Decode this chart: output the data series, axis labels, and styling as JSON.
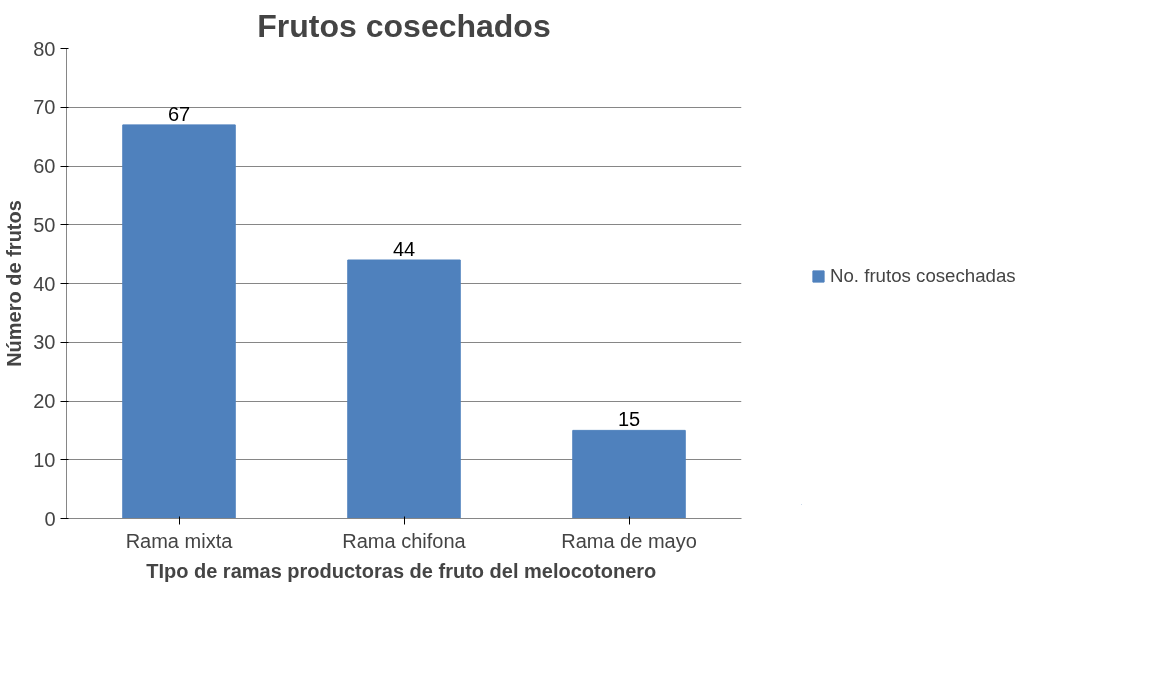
{
  "chart_data": {
    "type": "bar",
    "title": "Frutos cosechados",
    "xlabel": "TIpo de ramas productoras de  fruto del melocotonero",
    "ylabel": "Número de frutos",
    "categories": [
      "Rama mixta",
      "Rama chifona",
      "Rama de mayo"
    ],
    "series": [
      {
        "name": "No. frutos cosechadas",
        "color": "#4f81bd",
        "values": [
          67,
          44,
          15
        ]
      }
    ],
    "ylim": [
      0,
      80
    ],
    "yticks": [
      0,
      10,
      20,
      30,
      40,
      50,
      60,
      70,
      80
    ],
    "grid": "y",
    "legend": "right",
    "data_labels": true
  }
}
